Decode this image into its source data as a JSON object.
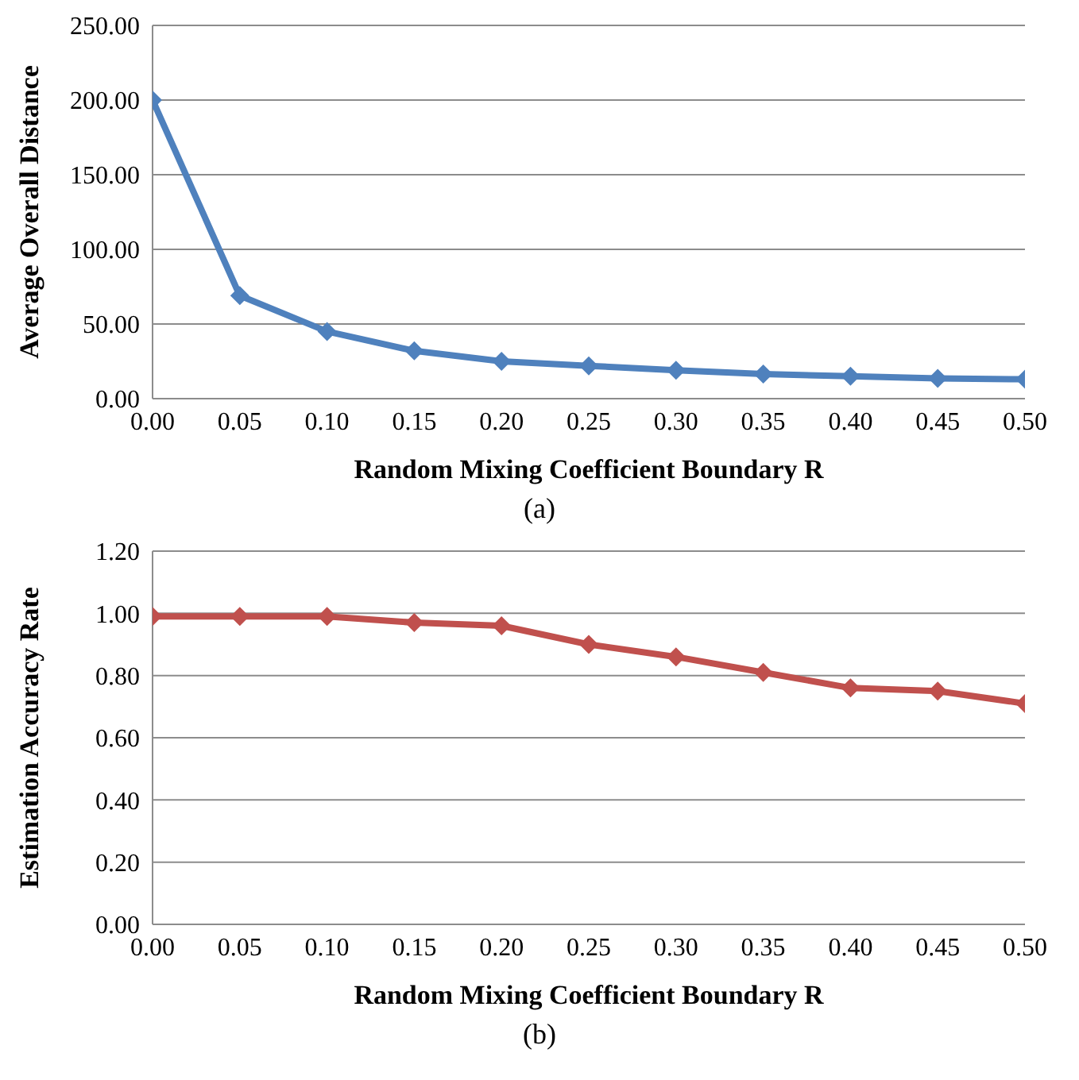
{
  "chart_data": [
    {
      "type": "line",
      "x": [
        0,
        0.05,
        0.1,
        0.15,
        0.2,
        0.25,
        0.3,
        0.35,
        0.4,
        0.45,
        0.5
      ],
      "series": [
        {
          "color": "#4f81bd",
          "values": [
            200,
            69,
            45,
            32,
            25,
            22,
            19,
            16.5,
            15,
            13.5,
            13
          ]
        }
      ],
      "xlabel": "Random Mixing Coefficient Boundary R",
      "ylabel": "Average Overall Distance",
      "annotations": [
        "(a)"
      ],
      "xlim": [
        0,
        0.5
      ],
      "xticks": [
        {
          "value": 0,
          "label": "0.00"
        },
        {
          "value": 0.05,
          "label": "0.05"
        },
        {
          "value": 0.1,
          "label": "0.10"
        },
        {
          "value": 0.15,
          "label": "0.15"
        },
        {
          "value": 0.2,
          "label": "0.20"
        },
        {
          "value": 0.25,
          "label": "0.25"
        },
        {
          "value": 0.3,
          "label": "0.30"
        },
        {
          "value": 0.35,
          "label": "0.35"
        },
        {
          "value": 0.4,
          "label": "0.40"
        },
        {
          "value": 0.45,
          "label": "0.45"
        },
        {
          "value": 0.5,
          "label": "0.50"
        }
      ],
      "ylim": [
        0,
        250
      ],
      "yticks": [
        {
          "value": 0,
          "label": "0.00"
        },
        {
          "value": 50,
          "label": "50.00"
        },
        {
          "value": 100,
          "label": "100.00"
        },
        {
          "value": 150,
          "label": "150.00"
        },
        {
          "value": 200,
          "label": "200.00"
        },
        {
          "value": 250,
          "label": "250.00"
        }
      ],
      "grid": "y",
      "marker": "diamond",
      "line_style": "solid"
    },
    {
      "type": "line",
      "x": [
        0,
        0.05,
        0.1,
        0.15,
        0.2,
        0.25,
        0.3,
        0.35,
        0.4,
        0.45,
        0.5
      ],
      "series": [
        {
          "color": "#c0504d",
          "values": [
            0.99,
            0.99,
            0.99,
            0.97,
            0.96,
            0.9,
            0.86,
            0.81,
            0.76,
            0.75,
            0.71
          ]
        }
      ],
      "xlabel": "Random Mixing Coefficient Boundary R",
      "ylabel": "Estimation Accuracy Rate",
      "annotations": [
        "(b)"
      ],
      "xlim": [
        0,
        0.5
      ],
      "xticks": [
        {
          "value": 0,
          "label": "0.00"
        },
        {
          "value": 0.05,
          "label": "0.05"
        },
        {
          "value": 0.1,
          "label": "0.10"
        },
        {
          "value": 0.15,
          "label": "0.15"
        },
        {
          "value": 0.2,
          "label": "0.20"
        },
        {
          "value": 0.25,
          "label": "0.25"
        },
        {
          "value": 0.3,
          "label": "0.30"
        },
        {
          "value": 0.35,
          "label": "0.35"
        },
        {
          "value": 0.4,
          "label": "0.40"
        },
        {
          "value": 0.45,
          "label": "0.45"
        },
        {
          "value": 0.5,
          "label": "0.50"
        }
      ],
      "ylim": [
        0,
        1.2
      ],
      "yticks": [
        {
          "value": 0,
          "label": "0.00"
        },
        {
          "value": 0.2,
          "label": "0.20"
        },
        {
          "value": 0.4,
          "label": "0.40"
        },
        {
          "value": 0.6,
          "label": "0.60"
        },
        {
          "value": 0.8,
          "label": "0.80"
        },
        {
          "value": 1,
          "label": "1.00"
        },
        {
          "value": 1.2,
          "label": "1.20"
        }
      ],
      "grid": "y",
      "marker": "diamond",
      "line_style": "solid"
    }
  ]
}
